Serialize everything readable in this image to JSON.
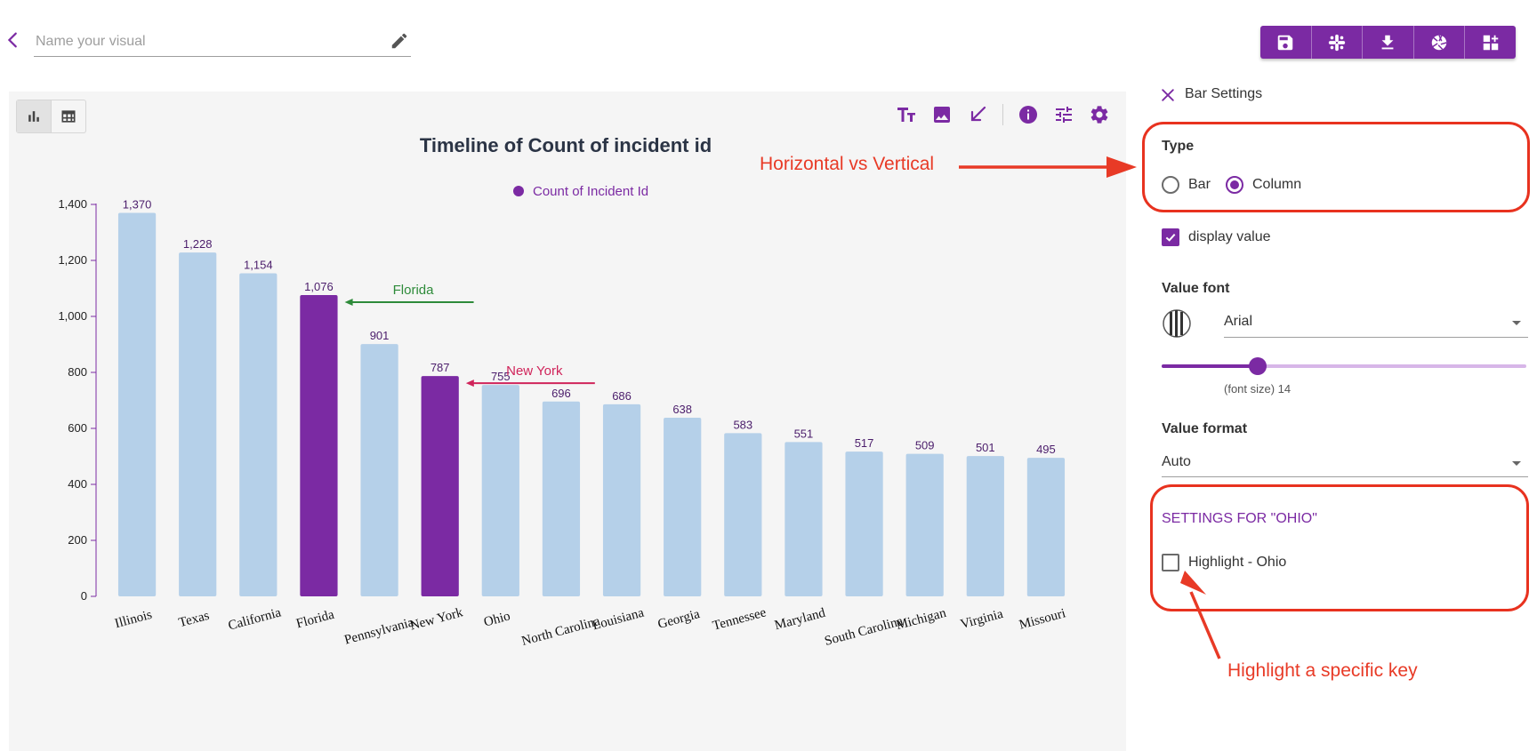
{
  "header": {
    "name_placeholder": "Name your visual",
    "back_icon": "chevron-left-icon",
    "edit_icon": "pencil-icon",
    "toolbar": [
      "save-icon",
      "slack-icon",
      "download-icon",
      "aperture-icon",
      "dashboard-add-icon"
    ],
    "accent_color": "#7b2aa3"
  },
  "chart_panel": {
    "view_toggle": [
      "bar-chart-icon",
      "table-icon"
    ],
    "tools": [
      "text-size-icon",
      "image-icon",
      "arrow-icon",
      "info-icon",
      "tune-icon",
      "gear-icon"
    ]
  },
  "chart_data": {
    "type": "bar",
    "title": "Timeline of Count of incident id",
    "legend": "Count of Incident Id",
    "categories": [
      "Illinois",
      "Texas",
      "California",
      "Florida",
      "Pennsylvania",
      "New York",
      "Ohio",
      "North Carolina",
      "Louisiana",
      "Georgia",
      "Tennessee",
      "Maryland",
      "South Carolina",
      "Michigan",
      "Virginia",
      "Missouri"
    ],
    "values": [
      1370,
      1228,
      1154,
      1076,
      901,
      787,
      755,
      696,
      686,
      638,
      583,
      551,
      517,
      509,
      501,
      495
    ],
    "value_labels": [
      "1,370",
      "1,228",
      "1,154",
      "1,076",
      "901",
      "787",
      "755",
      "696",
      "686",
      "638",
      "583",
      "551",
      "517",
      "509",
      "501",
      "495"
    ],
    "highlighted": [
      "Florida",
      "New York"
    ],
    "ylim": [
      0,
      1400
    ],
    "yticks": [
      0,
      200,
      400,
      600,
      800,
      1000,
      1200,
      1400
    ],
    "ytick_labels": [
      "0",
      "200",
      "400",
      "600",
      "800",
      "1,000",
      "1,200",
      "1,400"
    ],
    "bar_color": "#b5d0e9",
    "highlight_color": "#7b2aa3",
    "annotations": [
      {
        "text": "Florida",
        "target": "Florida",
        "color": "#2e8b3a"
      },
      {
        "text": "New York",
        "target": "New York",
        "color": "#d0245a"
      }
    ]
  },
  "settings": {
    "title": "Bar Settings",
    "type_label": "Type",
    "type_options": [
      "Bar",
      "Column"
    ],
    "type_selected": "Column",
    "display_value_label": "display value",
    "display_value_checked": true,
    "value_font_label": "Value font",
    "value_font": "Arial",
    "font_size_caption": "(font size) 14",
    "font_size_fraction": 0.24,
    "value_format_label": "Value format",
    "value_format": "Auto",
    "key_settings_title": "SETTINGS FOR \"OHIO\"",
    "highlight_label": "Highlight - Ohio",
    "highlight_checked": false
  },
  "callouts": {
    "orientation": "Horizontal vs Vertical",
    "highlight": "Highlight a specific key",
    "color": "#e83a26"
  }
}
